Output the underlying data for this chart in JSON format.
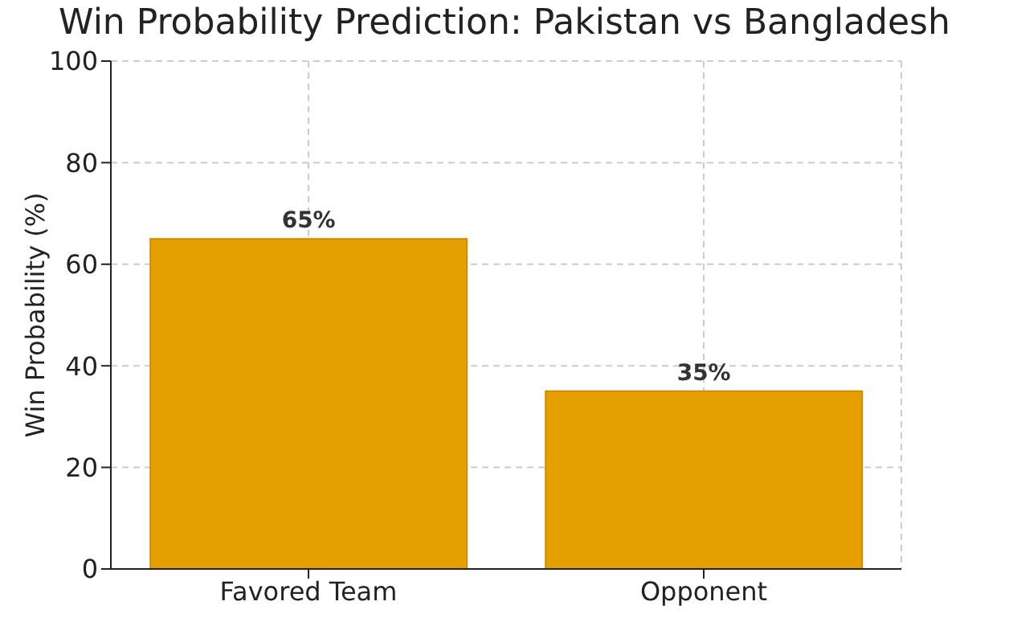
{
  "chart_data": {
    "type": "bar",
    "title": "Win Probability Prediction: Pakistan vs Bangladesh",
    "ylabel": "Win Probability (%)",
    "categories": [
      "Favored Team",
      "Opponent"
    ],
    "values": [
      65,
      35
    ],
    "value_labels": [
      "65%",
      "35%"
    ],
    "color": "#e69f00",
    "ylim": [
      0,
      100
    ],
    "yticks": [
      0,
      20,
      40,
      60,
      80,
      100
    ],
    "grid": true
  }
}
